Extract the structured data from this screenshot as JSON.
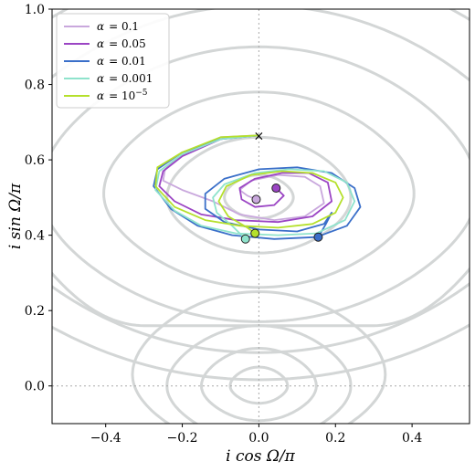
{
  "chart_data": {
    "type": "line",
    "xlabel": "i cos Ω/π",
    "ylabel": "i sin Ω/π",
    "xlim": [
      -0.54,
      0.55
    ],
    "ylim": [
      -0.1,
      1.0
    ],
    "xticks": [
      -0.4,
      -0.2,
      0.0,
      0.2,
      0.4
    ],
    "xtick_labels": [
      "−0.4",
      "−0.2",
      "0.0",
      "0.2",
      "0.4"
    ],
    "yticks": [
      0.0,
      0.2,
      0.4,
      0.6,
      0.8,
      1.0
    ],
    "ytick_labels": [
      "0.0",
      "0.2",
      "0.4",
      "0.6",
      "0.8",
      "1.0"
    ],
    "legend_position": "top-left",
    "start_marker": {
      "x": 0.0,
      "y": 0.665,
      "symbol": "×"
    },
    "series": [
      {
        "name": "α = 0.1",
        "label_prefix": "α",
        "label_value": "= 0.1",
        "color": "#c9a8dd",
        "end": [
          -0.007,
          0.495
        ],
        "points": [
          [
            0.0,
            0.665
          ],
          [
            -0.1,
            0.66
          ],
          [
            -0.2,
            0.615
          ],
          [
            -0.245,
            0.575
          ],
          [
            -0.25,
            0.545
          ],
          [
            -0.2,
            0.52
          ],
          [
            -0.12,
            0.49
          ],
          [
            -0.05,
            0.455
          ],
          [
            0.04,
            0.44
          ],
          [
            0.12,
            0.45
          ],
          [
            0.17,
            0.485
          ],
          [
            0.16,
            0.53
          ],
          [
            0.12,
            0.555
          ],
          [
            0.05,
            0.56
          ],
          [
            -0.02,
            0.545
          ],
          [
            -0.05,
            0.52
          ],
          [
            -0.03,
            0.505
          ],
          [
            -0.007,
            0.495
          ]
        ]
      },
      {
        "name": "α = 0.05",
        "label_prefix": "α",
        "label_value": "= 0.05",
        "color": "#9b45c4",
        "end": [
          0.045,
          0.525
        ],
        "points": [
          [
            0.0,
            0.665
          ],
          [
            -0.1,
            0.655
          ],
          [
            -0.2,
            0.61
          ],
          [
            -0.25,
            0.57
          ],
          [
            -0.26,
            0.53
          ],
          [
            -0.22,
            0.49
          ],
          [
            -0.15,
            0.455
          ],
          [
            -0.06,
            0.44
          ],
          [
            0.05,
            0.435
          ],
          [
            0.14,
            0.45
          ],
          [
            0.19,
            0.49
          ],
          [
            0.18,
            0.54
          ],
          [
            0.13,
            0.565
          ],
          [
            0.06,
            0.565
          ],
          [
            -0.01,
            0.55
          ],
          [
            -0.05,
            0.525
          ],
          [
            -0.045,
            0.495
          ],
          [
            -0.01,
            0.475
          ],
          [
            0.04,
            0.48
          ],
          [
            0.065,
            0.505
          ],
          [
            0.045,
            0.525
          ]
        ]
      },
      {
        "name": "α = 0.01",
        "label_prefix": "α",
        "label_value": "= 0.01",
        "color": "#3a6fc9",
        "end": [
          0.155,
          0.395
        ],
        "points": [
          [
            0.0,
            0.665
          ],
          [
            -0.1,
            0.655
          ],
          [
            -0.2,
            0.62
          ],
          [
            -0.265,
            0.575
          ],
          [
            -0.275,
            0.53
          ],
          [
            -0.23,
            0.47
          ],
          [
            -0.16,
            0.425
          ],
          [
            -0.07,
            0.4
          ],
          [
            0.04,
            0.39
          ],
          [
            0.15,
            0.395
          ],
          [
            0.23,
            0.425
          ],
          [
            0.265,
            0.475
          ],
          [
            0.25,
            0.525
          ],
          [
            0.19,
            0.565
          ],
          [
            0.1,
            0.58
          ],
          [
            0.0,
            0.575
          ],
          [
            -0.09,
            0.55
          ],
          [
            -0.14,
            0.51
          ],
          [
            -0.14,
            0.47
          ],
          [
            -0.09,
            0.435
          ],
          [
            0.0,
            0.415
          ],
          [
            0.1,
            0.41
          ],
          [
            0.17,
            0.43
          ],
          [
            0.19,
            0.46
          ],
          [
            0.175,
            0.43
          ],
          [
            0.155,
            0.395
          ]
        ]
      },
      {
        "name": "α = 0.001",
        "label_prefix": "α",
        "label_value": "= 0.001",
        "color": "#8fe3cc",
        "end": [
          -0.035,
          0.39
        ],
        "points": [
          [
            0.0,
            0.665
          ],
          [
            -0.1,
            0.655
          ],
          [
            -0.2,
            0.615
          ],
          [
            -0.26,
            0.57
          ],
          [
            -0.27,
            0.52
          ],
          [
            -0.22,
            0.465
          ],
          [
            -0.15,
            0.425
          ],
          [
            -0.06,
            0.405
          ],
          [
            0.05,
            0.4
          ],
          [
            0.15,
            0.405
          ],
          [
            0.225,
            0.44
          ],
          [
            0.25,
            0.49
          ],
          [
            0.23,
            0.54
          ],
          [
            0.17,
            0.57
          ],
          [
            0.08,
            0.575
          ],
          [
            -0.01,
            0.565
          ],
          [
            -0.09,
            0.535
          ],
          [
            -0.12,
            0.5
          ],
          [
            -0.11,
            0.46
          ],
          [
            -0.07,
            0.425
          ],
          [
            -0.035,
            0.39
          ]
        ]
      },
      {
        "name": "α = 10⁻⁵",
        "label_prefix": "α",
        "label_value": "= 10",
        "label_sup": "−5",
        "color": "#b5e02c",
        "end": [
          -0.01,
          0.405
        ],
        "points": [
          [
            0.0,
            0.665
          ],
          [
            -0.1,
            0.66
          ],
          [
            -0.2,
            0.62
          ],
          [
            -0.265,
            0.58
          ],
          [
            -0.27,
            0.53
          ],
          [
            -0.22,
            0.475
          ],
          [
            -0.14,
            0.44
          ],
          [
            -0.05,
            0.425
          ],
          [
            0.05,
            0.42
          ],
          [
            0.14,
            0.43
          ],
          [
            0.2,
            0.46
          ],
          [
            0.22,
            0.5
          ],
          [
            0.2,
            0.54
          ],
          [
            0.14,
            0.565
          ],
          [
            0.06,
            0.57
          ],
          [
            -0.02,
            0.56
          ],
          [
            -0.085,
            0.53
          ],
          [
            -0.105,
            0.49
          ],
          [
            -0.08,
            0.45
          ],
          [
            -0.03,
            0.42
          ],
          [
            -0.01,
            0.405
          ]
        ]
      }
    ],
    "contours": {
      "color": "#d3d6d6",
      "curves": [
        {
          "type": "ring",
          "cx": 0.0,
          "cy": 0.0,
          "ry": 0.05
        },
        {
          "type": "ring",
          "cx": 0.0,
          "cy": 0.0,
          "ry": 0.1
        },
        {
          "type": "ring",
          "cx": 0.0,
          "cy": 0.0,
          "ry": 0.16
        },
        {
          "type": "ring",
          "cx": 0.0,
          "cy": 0.03,
          "ry": 0.22
        },
        {
          "type": "arc_low",
          "cy": 0.08,
          "ry": 0.33
        },
        {
          "type": "ring",
          "cx": 0.0,
          "cy": 0.5,
          "ry": 0.06
        },
        {
          "type": "ring",
          "cx": 0.0,
          "cy": 0.5,
          "ry": 0.16
        },
        {
          "type": "ring",
          "cx": 0.0,
          "cy": 0.51,
          "ry": 0.27
        },
        {
          "type": "ring",
          "cx": 0.0,
          "cy": 0.52,
          "ry": 0.38
        },
        {
          "type": "ring",
          "cx": 0.0,
          "cy": 0.53,
          "ry": 0.48
        },
        {
          "type": "ring",
          "cx": 0.0,
          "cy": 0.55,
          "ry": 0.58
        }
      ]
    }
  }
}
